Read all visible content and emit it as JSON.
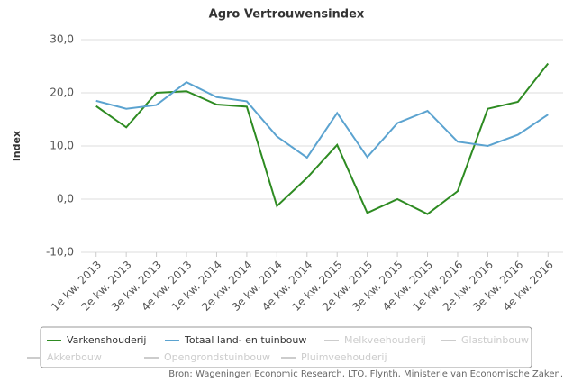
{
  "chart_data": {
    "type": "line",
    "title": "Agro Vertrouwensindex",
    "y_axis_label": "index",
    "categories": [
      "1e kw. 2013",
      "2e kw. 2013",
      "3e kw. 2013",
      "4e kw. 2013",
      "1e kw. 2014",
      "2e kw. 2014",
      "3e kw. 2014",
      "4e kw. 2014",
      "1e kw. 2015",
      "2e kw. 2015",
      "3e kw. 2015",
      "4e kw. 2015",
      "1e kw. 2016",
      "2e kw. 2016",
      "3e kw. 2016",
      "4e kw. 2016"
    ],
    "series": [
      {
        "name": "Varkenshouderij",
        "color": "#2e8b22",
        "visible": true,
        "values": [
          17.5,
          13.5,
          20,
          20.3,
          17.8,
          17.4,
          -1.3,
          4,
          10.2,
          -2.6,
          0,
          -2.8,
          1.5,
          17,
          18.3,
          25.5
        ]
      },
      {
        "name": "Totaal land- en tuinbouw",
        "color": "#5ba3d0",
        "visible": true,
        "values": [
          18.5,
          17,
          17.7,
          22,
          19.2,
          18.4,
          11.8,
          7.8,
          16.2,
          7.9,
          14.3,
          16.6,
          10.8,
          10,
          12.1,
          15.9
        ]
      },
      {
        "name": "Melkveehouderij",
        "color": "#cccccc",
        "visible": false,
        "values": [
          null,
          null,
          null,
          null,
          null,
          null,
          null,
          null,
          null,
          null,
          null,
          null,
          null,
          null,
          null,
          null
        ]
      },
      {
        "name": "Glastuinbouw",
        "color": "#cccccc",
        "visible": false,
        "values": [
          null,
          null,
          null,
          null,
          null,
          null,
          null,
          null,
          null,
          null,
          null,
          null,
          null,
          null,
          null,
          null
        ]
      },
      {
        "name": "Akkerbouw",
        "color": "#cccccc",
        "visible": false,
        "values": [
          null,
          null,
          null,
          null,
          null,
          null,
          null,
          null,
          null,
          null,
          null,
          null,
          null,
          null,
          null,
          null
        ]
      },
      {
        "name": "Opengrondstuinbouw",
        "color": "#cccccc",
        "visible": false,
        "values": [
          null,
          null,
          null,
          null,
          null,
          null,
          null,
          null,
          null,
          null,
          null,
          null,
          null,
          null,
          null,
          null
        ]
      },
      {
        "name": "Pluimveehouderij",
        "color": "#cccccc",
        "visible": false,
        "values": [
          null,
          null,
          null,
          null,
          null,
          null,
          null,
          null,
          null,
          null,
          null,
          null,
          null,
          null,
          null,
          null
        ]
      }
    ],
    "ylim": [
      -10,
      30
    ],
    "yticks": [
      {
        "value": -10,
        "label": "-10,0"
      },
      {
        "value": 0,
        "label": "0,0"
      },
      {
        "value": 10,
        "label": "10,0"
      },
      {
        "value": 20,
        "label": "20,0"
      },
      {
        "value": 30,
        "label": "30,0"
      }
    ],
    "grid": true,
    "source": "Bron: Wageningen Economic Research, LTO, Flynth, Ministerie van Economische Zaken."
  }
}
